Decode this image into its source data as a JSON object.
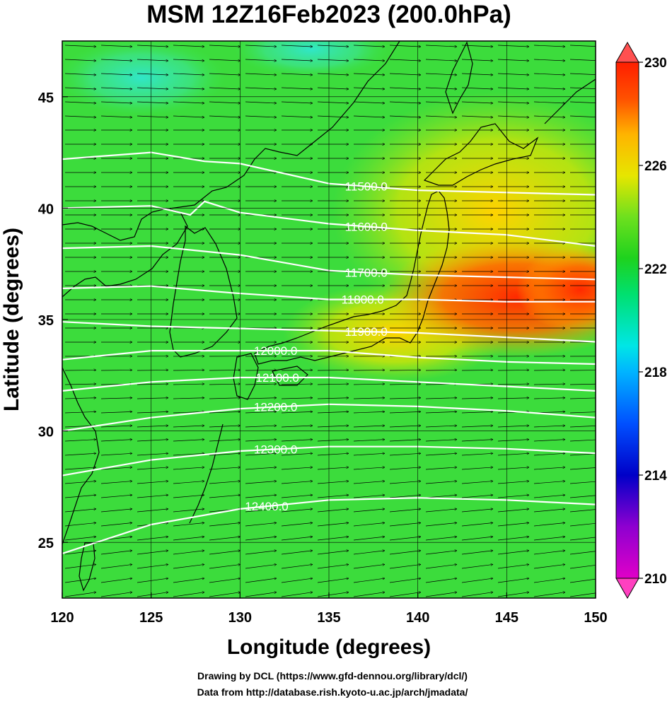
{
  "title": "MSM 12Z16Feb2023 (200.0hPa)",
  "x_axis": {
    "label": "Longitude (degrees)",
    "range": [
      120,
      150
    ],
    "ticks": [
      {
        "value": 120,
        "label": "120"
      },
      {
        "value": 125,
        "label": "125"
      },
      {
        "value": 130,
        "label": "130"
      },
      {
        "value": 135,
        "label": "135"
      },
      {
        "value": 140,
        "label": "140"
      },
      {
        "value": 145,
        "label": "145"
      },
      {
        "value": 150,
        "label": "150"
      }
    ]
  },
  "y_axis": {
    "label": "Latitude  (degrees)",
    "range": [
      22.5,
      47.5
    ],
    "ticks": [
      {
        "value": 25,
        "label": "25"
      },
      {
        "value": 30,
        "label": "30"
      },
      {
        "value": 35,
        "label": "35"
      },
      {
        "value": 40,
        "label": "40"
      },
      {
        "value": 45,
        "label": "45"
      }
    ]
  },
  "colorbar": {
    "range": [
      210,
      230
    ],
    "ticks": [
      {
        "value": 210,
        "label": "210"
      },
      {
        "value": 214,
        "label": "214"
      },
      {
        "value": 218,
        "label": "218"
      },
      {
        "value": 222,
        "label": "222"
      },
      {
        "value": 226,
        "label": "226"
      },
      {
        "value": 230,
        "label": "230"
      }
    ]
  },
  "contours": [
    {
      "value": 11500,
      "label": "11500.0",
      "label_lon": 137.1,
      "points": [
        [
          120,
          42.2
        ],
        [
          125,
          42.5
        ],
        [
          128,
          42.1
        ],
        [
          130,
          42.0
        ],
        [
          135,
          41.1
        ],
        [
          140,
          40.8
        ],
        [
          145,
          40.7
        ],
        [
          150,
          40.6
        ]
      ]
    },
    {
      "value": 11600,
      "label": "11600.0",
      "label_lon": 137.1,
      "points": [
        [
          120,
          40.0
        ],
        [
          125,
          40.1
        ],
        [
          127.2,
          39.7
        ],
        [
          128,
          40.3
        ],
        [
          130,
          39.8
        ],
        [
          135,
          39.3
        ],
        [
          140,
          39.0
        ],
        [
          145,
          38.8
        ],
        [
          150,
          38.3
        ]
      ]
    },
    {
      "value": 11700,
      "label": "11700.0",
      "label_lon": 137.1,
      "points": [
        [
          120,
          38.2
        ],
        [
          125,
          38.3
        ],
        [
          130,
          37.9
        ],
        [
          135,
          37.2
        ],
        [
          140,
          37.0
        ],
        [
          145,
          36.9
        ],
        [
          150,
          36.8
        ]
      ]
    },
    {
      "value": 11800,
      "label": "11800.0",
      "label_lon": 136.9,
      "points": [
        [
          120,
          36.4
        ],
        [
          125,
          36.5
        ],
        [
          129.5,
          36.2
        ],
        [
          135,
          35.9
        ],
        [
          140,
          35.9
        ],
        [
          145,
          35.8
        ],
        [
          150,
          35.8
        ]
      ]
    },
    {
      "value": 11900,
      "label": "11900.0",
      "label_lon": 137.1,
      "points": [
        [
          120,
          34.9
        ],
        [
          125,
          34.7
        ],
        [
          130,
          34.6
        ],
        [
          135,
          34.5
        ],
        [
          140,
          34.4
        ],
        [
          145,
          34.2
        ],
        [
          150,
          34.0
        ]
      ]
    },
    {
      "value": 12000,
      "label": "12000.0",
      "label_lon": 132.0,
      "points": [
        [
          120,
          33.2
        ],
        [
          125,
          33.6
        ],
        [
          130,
          33.6
        ],
        [
          135,
          33.6
        ],
        [
          140,
          33.3
        ],
        [
          145,
          33.1
        ],
        [
          150,
          33.0
        ]
      ]
    },
    {
      "value": 12100,
      "label": "12100.0",
      "label_lon": 132.1,
      "points": [
        [
          120,
          31.8
        ],
        [
          125,
          32.2
        ],
        [
          130,
          32.4
        ],
        [
          135,
          32.4
        ],
        [
          140,
          32.2
        ],
        [
          145,
          32.0
        ],
        [
          150,
          31.8
        ]
      ]
    },
    {
      "value": 12200,
      "label": "12200.0",
      "label_lon": 132.0,
      "points": [
        [
          120,
          30.0
        ],
        [
          125,
          30.6
        ],
        [
          130,
          31.0
        ],
        [
          135,
          31.2
        ],
        [
          140,
          31.1
        ],
        [
          145,
          30.9
        ],
        [
          150,
          30.6
        ]
      ]
    },
    {
      "value": 12300,
      "label": "12300.0",
      "label_lon": 132.0,
      "points": [
        [
          120,
          28.0
        ],
        [
          125,
          28.7
        ],
        [
          130,
          29.1
        ],
        [
          135,
          29.3
        ],
        [
          140,
          29.3
        ],
        [
          145,
          29.2
        ],
        [
          150,
          29.0
        ]
      ]
    },
    {
      "value": 12400,
      "label": "12400.0",
      "label_lon": 131.5,
      "points": [
        [
          120,
          24.5
        ],
        [
          125,
          25.8
        ],
        [
          130,
          26.5
        ],
        [
          135,
          26.9
        ],
        [
          140,
          27.0
        ],
        [
          145,
          26.9
        ],
        [
          150,
          26.7
        ]
      ]
    }
  ],
  "credits": {
    "line1": "Drawing by DCL (https://www.gfd-dennou.org/library/dcl/)",
    "line2": "Data from http://database.rish.kyoto-u.ac.jp/arch/jmadata/"
  }
}
